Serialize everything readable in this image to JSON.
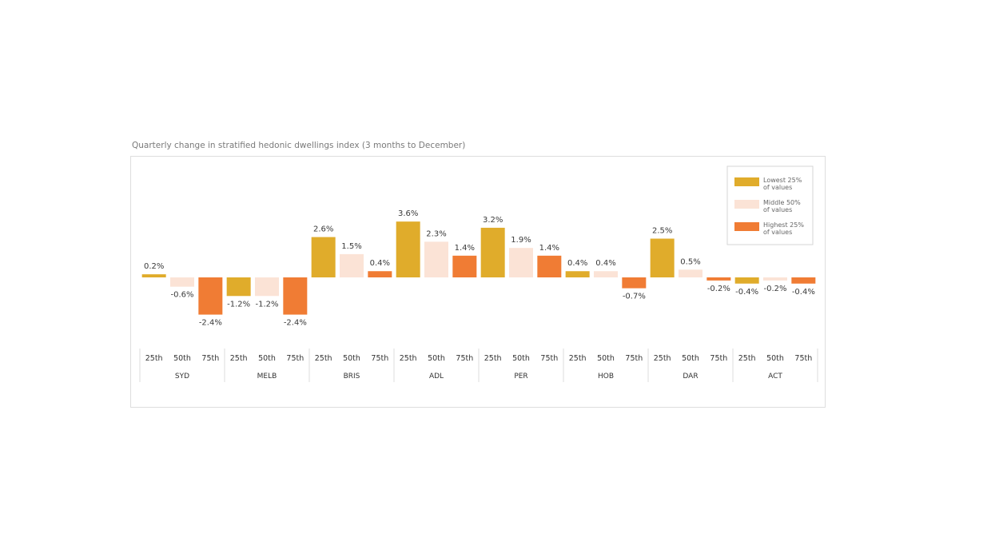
{
  "chart_data": {
    "type": "bar",
    "title": "Quarterly change in stratified hedonic dwellings index (3 months to December)",
    "groups": [
      "SYD",
      "MELB",
      "BRIS",
      "ADL",
      "PER",
      "HOB",
      "DAR",
      "ACT"
    ],
    "subcategories": [
      "25th",
      "50th",
      "75th"
    ],
    "series": [
      {
        "name": "Lowest 25% of values",
        "legend_lines": [
          "Lowest 25%",
          "of values"
        ],
        "color": "#E0AC2B",
        "values": [
          0.2,
          -1.2,
          2.6,
          3.6,
          3.2,
          0.4,
          2.5,
          -0.4
        ],
        "labels": [
          "0.2%",
          "-1.2%",
          "2.6%",
          "3.6%",
          "3.2%",
          "0.4%",
          "2.5%",
          "-0.4%"
        ]
      },
      {
        "name": "Middle 50% of values",
        "legend_lines": [
          "Middle 50%",
          "of values"
        ],
        "color": "#FBE3D6",
        "values": [
          -0.6,
          -1.2,
          1.5,
          2.3,
          1.9,
          0.4,
          0.5,
          -0.2
        ],
        "labels": [
          "-0.6%",
          "-1.2%",
          "1.5%",
          "2.3%",
          "1.9%",
          "0.4%",
          "0.5%",
          "-0.2%"
        ]
      },
      {
        "name": "Highest 25% of values",
        "legend_lines": [
          "Highest 25%",
          "of values"
        ],
        "color": "#F07C34",
        "values": [
          -2.4,
          -2.4,
          0.4,
          1.4,
          1.4,
          -0.7,
          -0.2,
          -0.4
        ],
        "labels": [
          "-2.4%",
          "-2.4%",
          "0.4%",
          "1.4%",
          "1.4%",
          "-0.7%",
          "-0.2%",
          "-0.4%"
        ]
      }
    ],
    "legend_position": "top-right",
    "grid": false
  }
}
